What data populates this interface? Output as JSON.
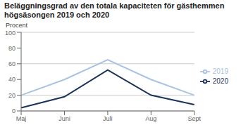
{
  "chart_data": {
    "type": "line",
    "title": "Beläggningsgrad av den totala kapaciteten för gästhemmen högsäsongen 2019 och 2020",
    "ylabel": "Procent",
    "categories": [
      "Maj",
      "Juni",
      "Juli",
      "Aug",
      "Sept"
    ],
    "series": [
      {
        "name": "2019",
        "color": "#a8c4e0",
        "values": [
          20,
          40,
          65,
          40,
          20
        ]
      },
      {
        "name": "2020",
        "color": "#1a3358",
        "values": [
          4,
          18,
          52,
          20,
          8
        ]
      }
    ],
    "ylim": [
      0,
      100
    ],
    "yticks": [
      0,
      20,
      40,
      60,
      80,
      100
    ],
    "grid": true,
    "legend": "right"
  }
}
